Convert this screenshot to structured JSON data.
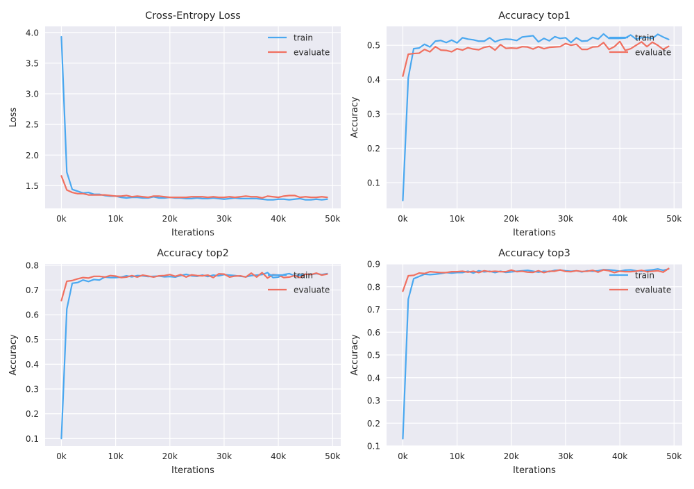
{
  "figure": {
    "background": "#ffffff",
    "plot_background": "#eaeaf2"
  },
  "series_colors": {
    "train": "#4aa8f0",
    "evaluate": "#f07060"
  },
  "chart_data": [
    {
      "type": "line",
      "title": "Cross-Entropy Loss",
      "xlabel": "Iterations",
      "ylabel": "Loss",
      "xlim": [
        -3000,
        51500
      ],
      "ylim": [
        1.13,
        4.1
      ],
      "xticks": [
        0,
        10000,
        20000,
        30000,
        40000,
        50000
      ],
      "xtick_labels": [
        "0k",
        "10k",
        "20k",
        "30k",
        "40k",
        "50k"
      ],
      "yticks": [
        1.5,
        2.0,
        2.5,
        3.0,
        3.5,
        4.0
      ],
      "ytick_labels": [
        "1.5",
        "2.0",
        "2.5",
        "3.0",
        "3.5",
        "4.0"
      ],
      "grid": true,
      "legend_position": "top-right",
      "x": [
        0,
        1000,
        2000,
        3000,
        4000,
        5000,
        6000,
        7000,
        8000,
        9000,
        10000,
        11000,
        12000,
        13000,
        14000,
        15000,
        16000,
        17000,
        18000,
        19000,
        20000,
        21000,
        22000,
        23000,
        24000,
        25000,
        26000,
        27000,
        28000,
        29000,
        30000,
        31000,
        32000,
        33000,
        34000,
        35000,
        36000,
        37000,
        38000,
        39000,
        40000,
        41000,
        42000,
        43000,
        44000,
        45000,
        46000,
        47000,
        48000,
        49000
      ],
      "series": [
        {
          "name": "train",
          "color": "#4aa8f0",
          "values": [
            3.93,
            1.72,
            1.44,
            1.41,
            1.38,
            1.39,
            1.36,
            1.36,
            1.34,
            1.33,
            1.33,
            1.31,
            1.3,
            1.31,
            1.31,
            1.3,
            1.3,
            1.32,
            1.3,
            1.3,
            1.31,
            1.3,
            1.3,
            1.29,
            1.29,
            1.3,
            1.29,
            1.29,
            1.3,
            1.29,
            1.28,
            1.29,
            1.3,
            1.29,
            1.29,
            1.29,
            1.29,
            1.28,
            1.27,
            1.27,
            1.28,
            1.28,
            1.27,
            1.28,
            1.29,
            1.27,
            1.27,
            1.28,
            1.27,
            1.28
          ]
        },
        {
          "name": "evaluate",
          "color": "#f07060",
          "values": [
            1.66,
            1.43,
            1.39,
            1.37,
            1.37,
            1.35,
            1.35,
            1.35,
            1.35,
            1.34,
            1.33,
            1.33,
            1.34,
            1.32,
            1.33,
            1.32,
            1.31,
            1.33,
            1.33,
            1.32,
            1.31,
            1.31,
            1.31,
            1.31,
            1.32,
            1.32,
            1.32,
            1.31,
            1.32,
            1.31,
            1.31,
            1.32,
            1.31,
            1.32,
            1.33,
            1.32,
            1.32,
            1.3,
            1.33,
            1.32,
            1.31,
            1.33,
            1.34,
            1.34,
            1.31,
            1.32,
            1.31,
            1.31,
            1.32,
            1.31
          ]
        }
      ]
    },
    {
      "type": "line",
      "title": "Accuracy top1",
      "xlabel": "Iterations",
      "ylabel": "Accuracy",
      "xlim": [
        -3000,
        51500
      ],
      "ylim": [
        0.025,
        0.555
      ],
      "xticks": [
        0,
        10000,
        20000,
        30000,
        40000,
        50000
      ],
      "xtick_labels": [
        "0k",
        "10k",
        "20k",
        "30k",
        "40k",
        "50k"
      ],
      "yticks": [
        0.1,
        0.2,
        0.3,
        0.4,
        0.5
      ],
      "ytick_labels": [
        "0.1",
        "0.2",
        "0.3",
        "0.4",
        "0.5"
      ],
      "grid": true,
      "legend_position": "top-right",
      "x": [
        0,
        1000,
        2000,
        3000,
        4000,
        5000,
        6000,
        7000,
        8000,
        9000,
        10000,
        11000,
        12000,
        13000,
        14000,
        15000,
        16000,
        17000,
        18000,
        19000,
        20000,
        21000,
        22000,
        23000,
        24000,
        25000,
        26000,
        27000,
        28000,
        29000,
        30000,
        31000,
        32000,
        33000,
        34000,
        35000,
        36000,
        37000,
        38000,
        39000,
        40000,
        41000,
        42000,
        43000,
        44000,
        45000,
        46000,
        47000,
        48000,
        49000
      ],
      "series": [
        {
          "name": "train",
          "color": "#4aa8f0",
          "values": [
            0.048,
            0.405,
            0.49,
            0.492,
            0.503,
            0.495,
            0.512,
            0.514,
            0.508,
            0.515,
            0.507,
            0.522,
            0.518,
            0.516,
            0.512,
            0.512,
            0.522,
            0.51,
            0.516,
            0.518,
            0.517,
            0.514,
            0.524,
            0.526,
            0.528,
            0.51,
            0.52,
            0.513,
            0.525,
            0.52,
            0.522,
            0.508,
            0.522,
            0.512,
            0.513,
            0.523,
            0.518,
            0.533,
            0.52,
            0.52,
            0.52,
            0.521,
            0.53,
            0.518,
            0.522,
            0.523,
            0.52,
            0.532,
            0.524,
            0.517
          ]
        },
        {
          "name": "evaluate",
          "color": "#f07060",
          "values": [
            0.41,
            0.474,
            0.476,
            0.477,
            0.488,
            0.481,
            0.496,
            0.486,
            0.485,
            0.481,
            0.49,
            0.486,
            0.493,
            0.489,
            0.487,
            0.494,
            0.497,
            0.486,
            0.502,
            0.491,
            0.492,
            0.491,
            0.496,
            0.495,
            0.489,
            0.496,
            0.49,
            0.494,
            0.495,
            0.496,
            0.505,
            0.5,
            0.503,
            0.488,
            0.488,
            0.495,
            0.496,
            0.508,
            0.488,
            0.496,
            0.511,
            0.485,
            0.49,
            0.5,
            0.51,
            0.496,
            0.509,
            0.5,
            0.488,
            0.497
          ]
        }
      ]
    },
    {
      "type": "line",
      "title": "Accuracy top2",
      "xlabel": "Iterations",
      "ylabel": "Accuracy",
      "xlim": [
        -3000,
        51500
      ],
      "ylim": [
        0.07,
        0.805
      ],
      "xticks": [
        0,
        10000,
        20000,
        30000,
        40000,
        50000
      ],
      "xtick_labels": [
        "0k",
        "10k",
        "20k",
        "30k",
        "40k",
        "50k"
      ],
      "yticks": [
        0.1,
        0.2,
        0.3,
        0.4,
        0.5,
        0.6,
        0.7,
        0.8
      ],
      "ytick_labels": [
        "0.1",
        "0.2",
        "0.3",
        "0.4",
        "0.5",
        "0.6",
        "0.7",
        "0.8"
      ],
      "grid": true,
      "legend_position": "top-right",
      "x": [
        0,
        1000,
        2000,
        3000,
        4000,
        5000,
        6000,
        7000,
        8000,
        9000,
        10000,
        11000,
        12000,
        13000,
        14000,
        15000,
        16000,
        17000,
        18000,
        19000,
        20000,
        21000,
        22000,
        23000,
        24000,
        25000,
        26000,
        27000,
        28000,
        29000,
        30000,
        31000,
        32000,
        33000,
        34000,
        35000,
        36000,
        37000,
        38000,
        39000,
        40000,
        41000,
        42000,
        43000,
        44000,
        45000,
        46000,
        47000,
        48000,
        49000
      ],
      "series": [
        {
          "name": "train",
          "color": "#4aa8f0",
          "values": [
            0.1,
            0.623,
            0.727,
            0.73,
            0.74,
            0.734,
            0.742,
            0.74,
            0.752,
            0.75,
            0.75,
            0.752,
            0.757,
            0.753,
            0.758,
            0.757,
            0.754,
            0.755,
            0.756,
            0.753,
            0.754,
            0.752,
            0.758,
            0.763,
            0.757,
            0.755,
            0.76,
            0.754,
            0.76,
            0.757,
            0.762,
            0.76,
            0.758,
            0.755,
            0.753,
            0.758,
            0.76,
            0.762,
            0.77,
            0.75,
            0.752,
            0.762,
            0.766,
            0.757,
            0.76,
            0.764,
            0.762,
            0.766,
            0.762,
            0.766
          ]
        },
        {
          "name": "evaluate",
          "color": "#f07060",
          "values": [
            0.657,
            0.735,
            0.738,
            0.745,
            0.75,
            0.748,
            0.755,
            0.755,
            0.752,
            0.758,
            0.756,
            0.75,
            0.752,
            0.758,
            0.752,
            0.76,
            0.756,
            0.752,
            0.757,
            0.758,
            0.762,
            0.755,
            0.762,
            0.752,
            0.761,
            0.758,
            0.757,
            0.76,
            0.75,
            0.765,
            0.764,
            0.752,
            0.756,
            0.757,
            0.752,
            0.768,
            0.752,
            0.77,
            0.748,
            0.762,
            0.76,
            0.75,
            0.752,
            0.758,
            0.75,
            0.764,
            0.762,
            0.768,
            0.76,
            0.764
          ]
        }
      ]
    },
    {
      "type": "line",
      "title": "Accuracy top3",
      "xlabel": "Iterations",
      "ylabel": "Accuracy",
      "xlim": [
        -3000,
        51500
      ],
      "ylim": [
        0.1,
        0.9
      ],
      "xticks": [
        0,
        10000,
        20000,
        30000,
        40000,
        50000
      ],
      "xtick_labels": [
        "0k",
        "10k",
        "20k",
        "30k",
        "40k",
        "50k"
      ],
      "yticks": [
        0.1,
        0.2,
        0.3,
        0.4,
        0.5,
        0.6,
        0.7,
        0.8,
        0.9
      ],
      "ytick_labels": [
        "0.1",
        "0.2",
        "0.3",
        "0.4",
        "0.5",
        "0.6",
        "0.7",
        "0.8",
        "0.9"
      ],
      "grid": true,
      "legend_position": "top-right",
      "x": [
        0,
        1000,
        2000,
        3000,
        4000,
        5000,
        6000,
        7000,
        8000,
        9000,
        10000,
        11000,
        12000,
        13000,
        14000,
        15000,
        16000,
        17000,
        18000,
        19000,
        20000,
        21000,
        22000,
        23000,
        24000,
        25000,
        26000,
        27000,
        28000,
        29000,
        30000,
        31000,
        32000,
        33000,
        34000,
        35000,
        36000,
        37000,
        38000,
        39000,
        40000,
        41000,
        42000,
        43000,
        44000,
        45000,
        46000,
        47000,
        48000,
        49000
      ],
      "series": [
        {
          "name": "train",
          "color": "#4aa8f0",
          "values": [
            0.132,
            0.745,
            0.835,
            0.845,
            0.855,
            0.853,
            0.855,
            0.858,
            0.862,
            0.86,
            0.862,
            0.862,
            0.868,
            0.86,
            0.87,
            0.865,
            0.868,
            0.862,
            0.868,
            0.863,
            0.865,
            0.868,
            0.87,
            0.872,
            0.868,
            0.864,
            0.868,
            0.866,
            0.872,
            0.873,
            0.87,
            0.868,
            0.87,
            0.865,
            0.87,
            0.868,
            0.87,
            0.875,
            0.874,
            0.872,
            0.868,
            0.873,
            0.874,
            0.87,
            0.868,
            0.872,
            0.874,
            0.878,
            0.872,
            0.878
          ]
        },
        {
          "name": "evaluate",
          "color": "#f07060",
          "values": [
            0.78,
            0.848,
            0.85,
            0.86,
            0.858,
            0.866,
            0.864,
            0.862,
            0.862,
            0.866,
            0.866,
            0.868,
            0.864,
            0.868,
            0.862,
            0.87,
            0.866,
            0.868,
            0.866,
            0.866,
            0.873,
            0.866,
            0.868,
            0.864,
            0.863,
            0.87,
            0.862,
            0.868,
            0.868,
            0.874,
            0.867,
            0.866,
            0.87,
            0.867,
            0.868,
            0.872,
            0.864,
            0.874,
            0.87,
            0.862,
            0.868,
            0.866,
            0.866,
            0.868,
            0.872,
            0.866,
            0.868,
            0.87,
            0.864,
            0.88
          ]
        }
      ]
    }
  ]
}
